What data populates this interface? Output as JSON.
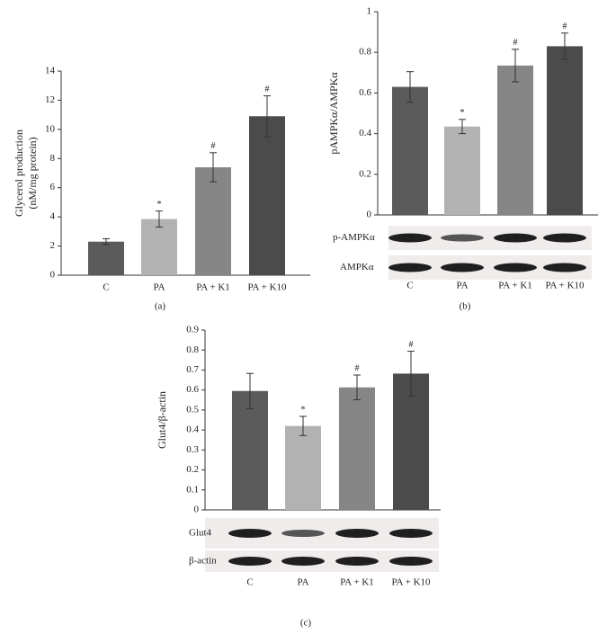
{
  "chart_data": [
    {
      "type": "bar",
      "panel_label": "(a)",
      "ylabel": [
        "Glycerol production",
        "(nM/mg protein)"
      ],
      "categories": [
        "C",
        "PA",
        "PA + K1",
        "PA + K10"
      ],
      "values": [
        2.3,
        3.85,
        7.4,
        10.9
      ],
      "errors": [
        0.2,
        0.55,
        1.0,
        1.4
      ],
      "annotations": [
        null,
        "*",
        "#",
        "#"
      ],
      "colors": [
        "#5b5b5b",
        "#b2b2b2",
        "#868686",
        "#4b4b4b"
      ],
      "ylim": [
        0,
        14
      ],
      "yticks": [
        0,
        2,
        4,
        6,
        8,
        10,
        12,
        14
      ]
    },
    {
      "type": "bar",
      "panel_label": "(b)",
      "ylabel": "pAMPKα/AMPKα",
      "categories": [
        "C",
        "PA",
        "PA + K1",
        "PA + K10"
      ],
      "values": [
        0.63,
        0.435,
        0.735,
        0.83
      ],
      "errors": [
        0.075,
        0.035,
        0.08,
        0.065
      ],
      "annotations": [
        null,
        "*",
        "#",
        "#"
      ],
      "colors": [
        "#5b5b5b",
        "#b2b2b2",
        "#868686",
        "#4b4b4b"
      ],
      "blot_labels": [
        "p-AMPKα",
        "AMPKα"
      ],
      "ylim": [
        0,
        1
      ],
      "yticks": [
        0,
        0.2,
        0.4,
        0.6,
        0.8,
        1
      ]
    },
    {
      "type": "bar",
      "panel_label": "(c)",
      "ylabel": "Glut4/β-actin",
      "categories": [
        "C",
        "PA",
        "PA + K1",
        "PA + K10"
      ],
      "values": [
        0.595,
        0.42,
        0.613,
        0.682
      ],
      "errors": [
        0.088,
        0.048,
        0.062,
        0.112
      ],
      "annotations": [
        null,
        "*",
        "#",
        "#"
      ],
      "colors": [
        "#5b5b5b",
        "#b2b2b2",
        "#868686",
        "#4b4b4b"
      ],
      "blot_labels": [
        "Glut4",
        "β-actin"
      ],
      "ylim": [
        0,
        0.9
      ],
      "yticks": [
        0,
        0.1,
        0.2,
        0.3,
        0.4,
        0.5,
        0.6,
        0.7,
        0.8,
        0.9
      ]
    }
  ]
}
